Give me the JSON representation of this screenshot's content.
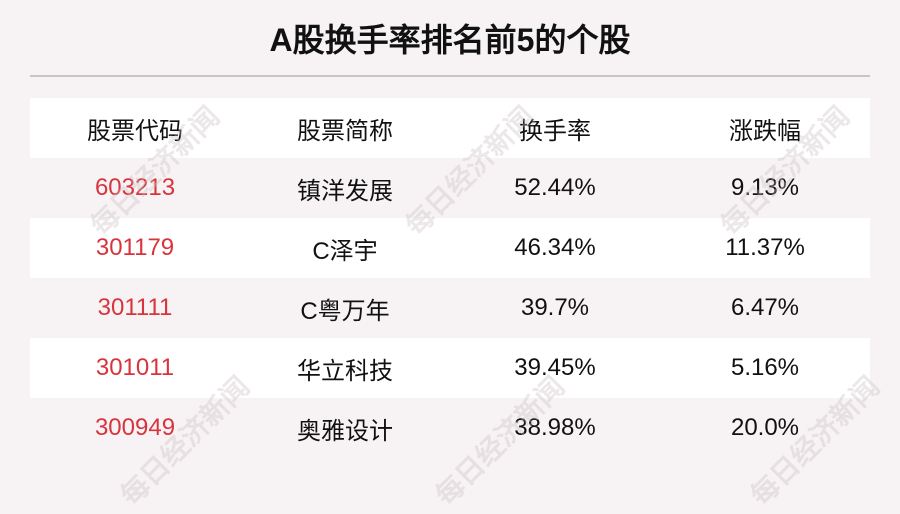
{
  "title": "A股换手率排名前5的个股",
  "watermark": "每日经济新闻",
  "colors": {
    "code": "#d8343d",
    "background": "#f7f3f4",
    "row_alt": "#ffffff"
  },
  "table": {
    "headers": [
      "股票代码",
      "股票简称",
      "换手率",
      "涨跌幅"
    ],
    "rows": [
      [
        "603213",
        "镇洋发展",
        "52.44%",
        "9.13%"
      ],
      [
        "301179",
        "C泽宇",
        "46.34%",
        "11.37%"
      ],
      [
        "301111",
        "C粤万年",
        "39.7%",
        "6.47%"
      ],
      [
        "301011",
        "华立科技",
        "39.45%",
        "5.16%"
      ],
      [
        "300949",
        "奥雅设计",
        "38.98%",
        "20.0%"
      ]
    ]
  }
}
